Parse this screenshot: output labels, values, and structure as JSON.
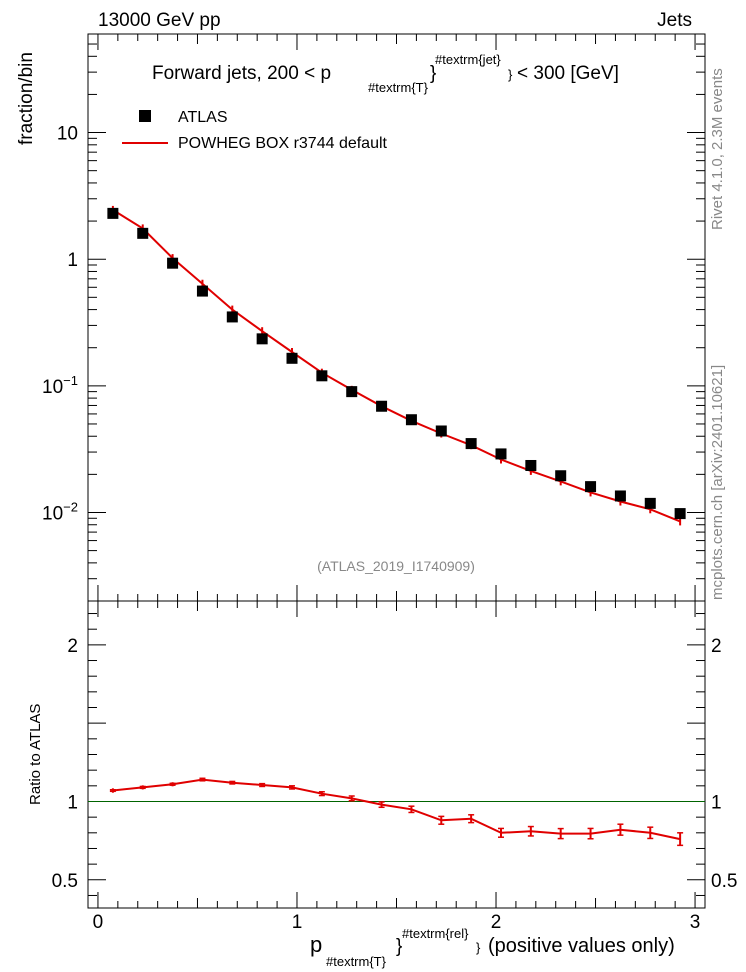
{
  "header": {
    "left": "13000 GeV pp",
    "right": "Jets"
  },
  "side_labels": {
    "rivet": "Rivet 4.1.0,  2.3M events",
    "mcplots": "mcplots.cern.ch [arXiv:2401.10621]"
  },
  "chart_data": [
    {
      "type": "scatter",
      "panel": "main",
      "title": {
        "main": "Forward jets, 200 < p",
        "sub": "#textrm{T}",
        "sup": "#textrm{jet}",
        "tail": "< 300 [GeV]"
      },
      "ylabel": "fraction/bin",
      "yscale": "log",
      "ylim": [
        0.002,
        60
      ],
      "xlim": [
        -0.05,
        3.05
      ],
      "watermark": "(ATLAS_2019_I1740909)",
      "y_ticks": [
        {
          "value": 10,
          "label": "10",
          "exp": ""
        },
        {
          "value": 1,
          "label": "1",
          "exp": ""
        },
        {
          "value": 0.1,
          "label": "10",
          "exp": "−1"
        },
        {
          "value": 0.01,
          "label": "10",
          "exp": "−2"
        }
      ],
      "legend": {
        "position": "top-left",
        "data_label": "ATLAS",
        "mc_label": "POWHEG BOX r3744 default"
      },
      "x": [
        0.075,
        0.225,
        0.375,
        0.525,
        0.675,
        0.825,
        0.975,
        1.125,
        1.275,
        1.425,
        1.575,
        1.725,
        1.875,
        2.025,
        2.175,
        2.325,
        2.475,
        2.625,
        2.775,
        2.925
      ],
      "series": [
        {
          "name": "ATLAS",
          "color": "#000000",
          "values": [
            2.3,
            1.6,
            0.93,
            0.56,
            0.35,
            0.235,
            0.165,
            0.12,
            0.09,
            0.069,
            0.054,
            0.044,
            0.035,
            0.029,
            0.0235,
            0.0195,
            0.016,
            0.0135,
            0.0118,
            0.0098
          ]
        },
        {
          "name": "POWHEG BOX r3744 default",
          "color": "#e00000",
          "values": [
            2.45,
            1.75,
            1.02,
            0.64,
            0.4,
            0.27,
            0.185,
            0.127,
            0.093,
            0.069,
            0.053,
            0.042,
            0.034,
            0.0262,
            0.0213,
            0.0176,
            0.0144,
            0.0122,
            0.0106,
            0.0085
          ]
        }
      ]
    },
    {
      "type": "line",
      "panel": "ratio",
      "ylabel": "Ratio to ATLAS",
      "ylim": [
        0.32,
        2.28
      ],
      "xlim": [
        -0.05,
        3.05
      ],
      "xlabel": {
        "main": "p",
        "sub": "#textrm{T}",
        "sup": "#textrm{rel}",
        "tail": "(positive values only)"
      },
      "x_ticks": [
        0,
        1,
        2,
        3
      ],
      "y_ticks": [
        2,
        1,
        0.5
      ],
      "reference": 1,
      "reference_color": "#006400",
      "series_color": "#e00000",
      "x": [
        0.075,
        0.225,
        0.375,
        0.525,
        0.675,
        0.825,
        0.975,
        1.125,
        1.275,
        1.425,
        1.575,
        1.725,
        1.875,
        2.025,
        2.175,
        2.325,
        2.475,
        2.625,
        2.775,
        2.925
      ],
      "values": [
        1.07,
        1.09,
        1.11,
        1.14,
        1.12,
        1.105,
        1.09,
        1.05,
        1.02,
        0.98,
        0.95,
        0.88,
        0.89,
        0.8,
        0.81,
        0.795,
        0.795,
        0.82,
        0.8,
        0.76
      ],
      "errors": [
        0.005,
        0.006,
        0.006,
        0.008,
        0.008,
        0.009,
        0.01,
        0.012,
        0.015,
        0.017,
        0.02,
        0.025,
        0.025,
        0.028,
        0.03,
        0.032,
        0.033,
        0.035,
        0.036,
        0.04
      ]
    }
  ]
}
